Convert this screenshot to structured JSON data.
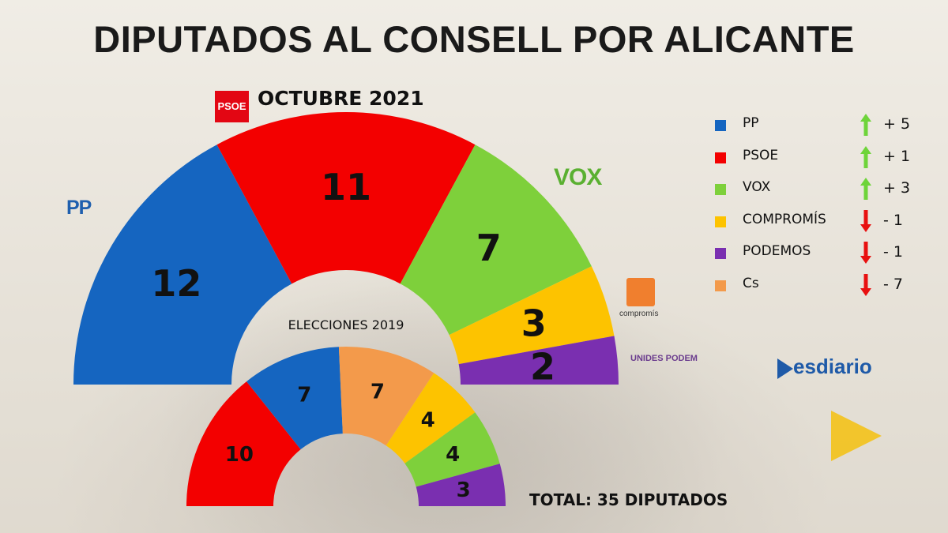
{
  "title": "DIPUTADOS AL CONSELL POR ALICANTE",
  "total_label": "TOTAL: 35 DIPUTADOS",
  "logos": {
    "psoe": "PSOE",
    "pp": "PP",
    "vox": "VOX",
    "compromis": "compromís",
    "podem": "UNIDES PODEM",
    "brand": "esdiario"
  },
  "chart_data": [
    {
      "type": "semicircle",
      "title": "OCTUBRE 2021",
      "total": 35,
      "categories": [
        "PP",
        "PSOE",
        "VOX",
        "COMPROMÍS",
        "PODEMOS"
      ],
      "values": [
        12,
        11,
        7,
        3,
        2
      ],
      "colors": [
        "#1565c0",
        "#f30000",
        "#7ed03b",
        "#fdc300",
        "#7a2fb0"
      ]
    },
    {
      "type": "semicircle",
      "title": "ELECCIONES 2019",
      "total": 35,
      "categories": [
        "PSOE",
        "PP",
        "Cs",
        "COMPROMÍS",
        "VOX",
        "PODEMOS"
      ],
      "values": [
        10,
        7,
        7,
        4,
        4,
        3
      ],
      "colors": [
        "#f30000",
        "#1565c0",
        "#f39a4b",
        "#fdc300",
        "#7ed03b",
        "#7a2fb0"
      ]
    }
  ],
  "legend": [
    {
      "label": "PP",
      "color": "#1565c0",
      "change": "+ 5",
      "direction": "up"
    },
    {
      "label": "PSOE",
      "color": "#f30000",
      "change": "+ 1",
      "direction": "up"
    },
    {
      "label": "VOX",
      "color": "#7ed03b",
      "change": "+ 3",
      "direction": "up"
    },
    {
      "label": "COMPROMÍS",
      "color": "#fdc300",
      "change": "- 1",
      "direction": "down"
    },
    {
      "label": "PODEMOS",
      "color": "#7a2fb0",
      "change": "- 1",
      "direction": "down"
    },
    {
      "label": "Cs",
      "color": "#f39a4b",
      "change": "- 7",
      "direction": "down"
    }
  ],
  "arrow_colors": {
    "up": "#6ed43a",
    "down": "#e81010"
  }
}
